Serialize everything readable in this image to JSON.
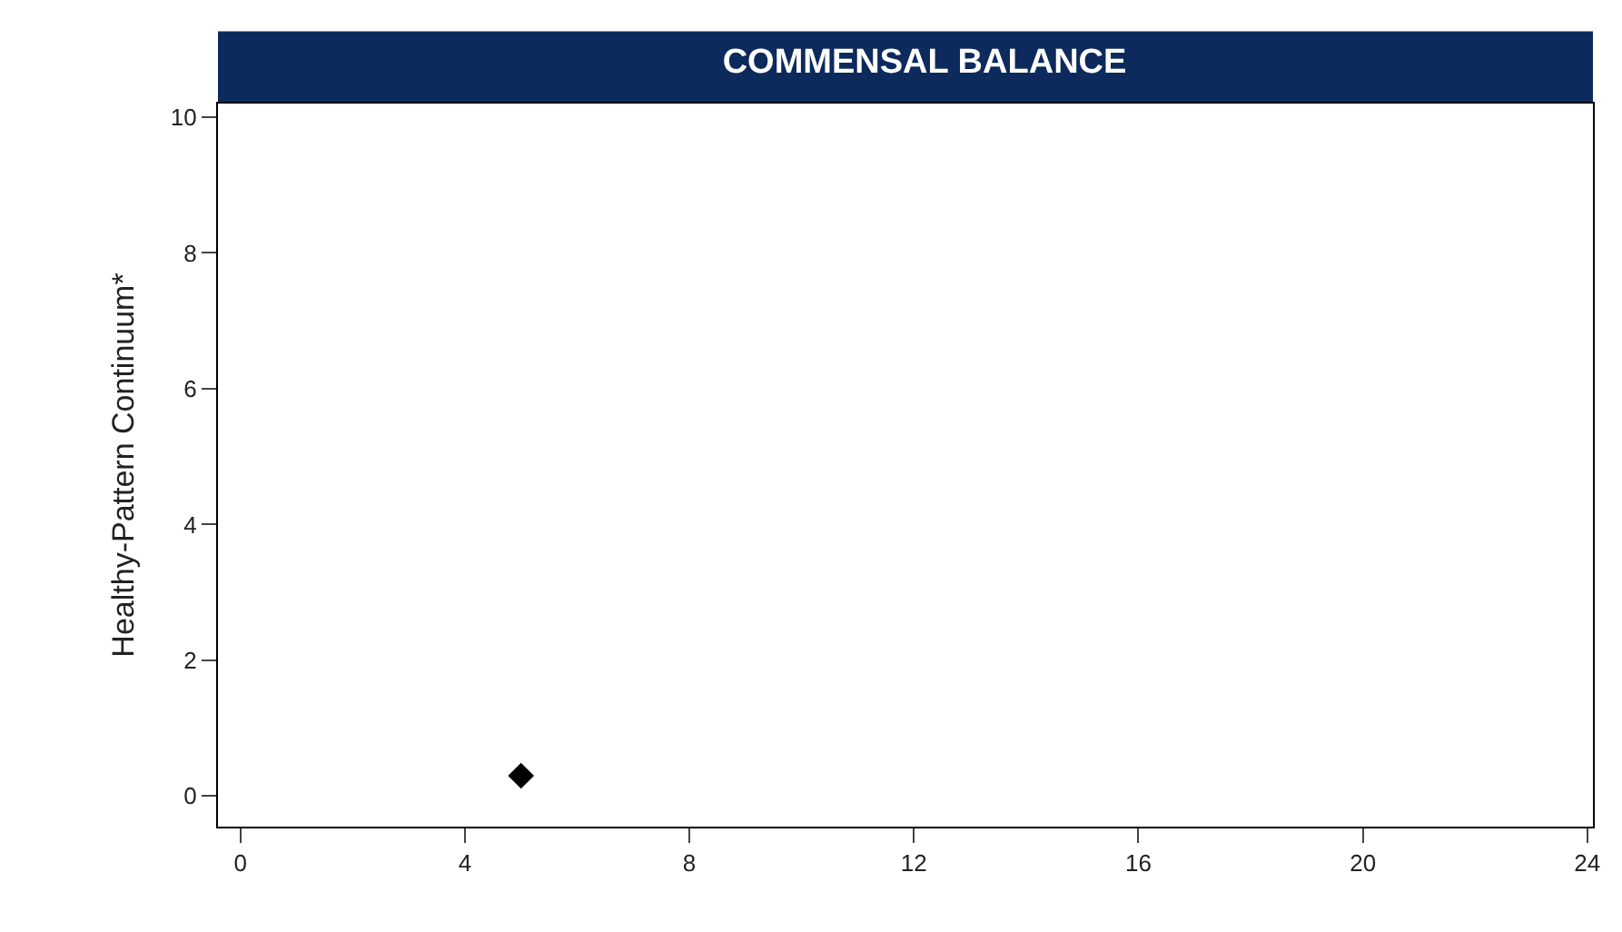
{
  "chart_data": {
    "type": "scatter",
    "title": "COMMENSAL BALANCE",
    "ylabel": "Healthy-Pattern Continuum*",
    "x": [
      5
    ],
    "values": [
      0.3
    ],
    "color": "#000000",
    "marker": "diamond",
    "xlim": [
      -0.4,
      24.1
    ],
    "xticks": [
      0,
      4,
      8,
      12,
      16,
      20,
      24
    ],
    "ylim": [
      -0.45,
      10.2
    ],
    "yticks": [
      0,
      2,
      4,
      6,
      8,
      10
    ],
    "legend": false
  }
}
